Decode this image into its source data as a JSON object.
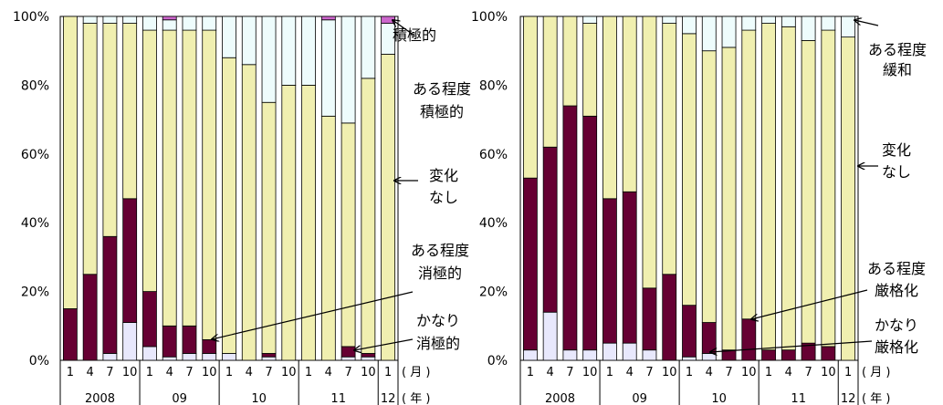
{
  "chart_data": [
    {
      "type": "bar",
      "stacked": "percent",
      "ylim": [
        0,
        100
      ],
      "y_ticks": [
        "0%",
        "20%",
        "40%",
        "60%",
        "80%",
        "100%"
      ],
      "month_labels": [
        "1",
        "4",
        "7",
        "10",
        "1",
        "4",
        "7",
        "10",
        "1",
        "4",
        "7",
        "10",
        "1",
        "4",
        "7",
        "10",
        "1"
      ],
      "year_groups": [
        {
          "label": "2008",
          "count": 4
        },
        {
          "label": "09",
          "count": 4
        },
        {
          "label": "10",
          "count": 4
        },
        {
          "label": "11",
          "count": 4
        },
        {
          "label": "12",
          "count": 1
        }
      ],
      "month_unit": "( 月 )",
      "year_unit": "( 年 )",
      "colors": [
        "#e8e8fc",
        "#660033",
        "#f0efb0",
        "#eefcfc",
        "#cc66cc"
      ],
      "series": [
        {
          "name": "かなり消極的",
          "values": [
            0,
            0,
            2,
            11,
            4,
            1,
            2,
            2,
            2,
            0,
            1,
            0,
            0,
            0,
            1,
            1,
            0
          ]
        },
        {
          "name": "ある程度消極的",
          "values": [
            15,
            25,
            34,
            36,
            16,
            9,
            8,
            4,
            0,
            0,
            1,
            0,
            0,
            0,
            3,
            1,
            0
          ]
        },
        {
          "name": "変化なし",
          "values": [
            85,
            73,
            62,
            51,
            76,
            86,
            86,
            90,
            86,
            86,
            73,
            80,
            80,
            71,
            65,
            80,
            89
          ]
        },
        {
          "name": "ある程度積極的",
          "values": [
            0,
            2,
            2,
            2,
            4,
            3,
            4,
            4,
            12,
            14,
            25,
            20,
            20,
            28,
            31,
            18,
            9
          ]
        },
        {
          "name": "積極的",
          "values": [
            0,
            0,
            0,
            0,
            0,
            1,
            0,
            0,
            0,
            0,
            0,
            0,
            0,
            1,
            0,
            0,
            2
          ]
        }
      ],
      "annotations": [
        {
          "lines": [
            "積極的"
          ]
        },
        {
          "lines": [
            "ある程度",
            "積極的"
          ]
        },
        {
          "lines": [
            "変化",
            "なし"
          ]
        },
        {
          "lines": [
            "ある程度",
            "消極的"
          ]
        },
        {
          "lines": [
            "かなり",
            "消極的"
          ]
        }
      ]
    },
    {
      "type": "bar",
      "stacked": "percent",
      "ylim": [
        0,
        100
      ],
      "y_ticks": [
        "0%",
        "20%",
        "40%",
        "60%",
        "80%",
        "100%"
      ],
      "month_labels": [
        "1",
        "4",
        "7",
        "10",
        "1",
        "4",
        "7",
        "10",
        "1",
        "4",
        "7",
        "10",
        "1",
        "4",
        "7",
        "10",
        "1"
      ],
      "year_groups": [
        {
          "label": "2008",
          "count": 4
        },
        {
          "label": "09",
          "count": 4
        },
        {
          "label": "10",
          "count": 4
        },
        {
          "label": "11",
          "count": 4
        },
        {
          "label": "12",
          "count": 1
        }
      ],
      "month_unit": "( 月 )",
      "year_unit": "( 年 )",
      "colors": [
        "#e8e8fc",
        "#660033",
        "#f0efb0",
        "#eefcfc"
      ],
      "series": [
        {
          "name": "かなり厳格化",
          "values": [
            3,
            14,
            3,
            3,
            5,
            5,
            3,
            0,
            1,
            2,
            0,
            0,
            0,
            0,
            0,
            0,
            0
          ]
        },
        {
          "name": "ある程度厳格化",
          "values": [
            50,
            48,
            71,
            68,
            42,
            44,
            18,
            25,
            15,
            9,
            3,
            12,
            3,
            3,
            5,
            4,
            0
          ]
        },
        {
          "name": "変化なし",
          "values": [
            47,
            38,
            26,
            27,
            53,
            51,
            79,
            73,
            79,
            79,
            88,
            84,
            95,
            94,
            88,
            92,
            94
          ]
        },
        {
          "name": "ある程度緩和",
          "values": [
            0,
            0,
            0,
            2,
            0,
            0,
            0,
            2,
            5,
            10,
            9,
            4,
            2,
            3,
            7,
            4,
            6
          ]
        }
      ],
      "annotations": [
        {
          "lines": [
            "ある程度",
            "緩和"
          ]
        },
        {
          "lines": [
            "変化",
            "なし"
          ]
        },
        {
          "lines": [
            "ある程度",
            "厳格化"
          ]
        },
        {
          "lines": [
            "かなり",
            "厳格化"
          ]
        }
      ]
    }
  ]
}
